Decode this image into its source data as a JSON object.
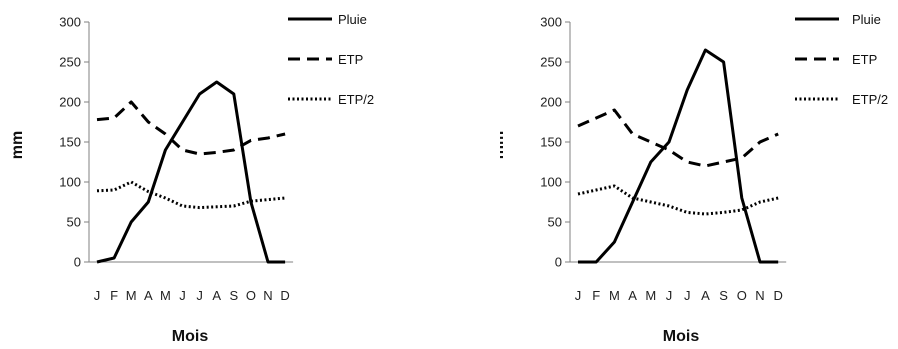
{
  "colors": {
    "line": "#000000",
    "axis": "#808080"
  },
  "chart_data": [
    {
      "type": "line",
      "categories": [
        "J",
        "F",
        "M",
        "A",
        "M",
        "J",
        "J",
        "A",
        "S",
        "O",
        "N",
        "D"
      ],
      "ylabel": "mm",
      "xlabel": "Mois",
      "ylim": [
        0,
        300
      ],
      "yticks": [
        0,
        50,
        100,
        150,
        200,
        250,
        300
      ],
      "grid": false,
      "legend_position": "top-right",
      "series": [
        {
          "name": "Pluie",
          "style": "solid",
          "values": [
            0,
            5,
            50,
            75,
            140,
            175,
            210,
            225,
            210,
            75,
            0,
            0
          ]
        },
        {
          "name": "ETP",
          "style": "dashed",
          "values": [
            178,
            180,
            200,
            175,
            160,
            140,
            135,
            137,
            140,
            152,
            155,
            160
          ]
        },
        {
          "name": "ETP/2",
          "style": "dotted",
          "values": [
            89,
            90,
            100,
            88,
            80,
            70,
            68,
            69,
            70,
            76,
            78,
            80
          ]
        }
      ]
    },
    {
      "type": "line",
      "categories": [
        "J",
        "F",
        "M",
        "A",
        "M",
        "J",
        "J",
        "A",
        "S",
        "O",
        "N",
        "D"
      ],
      "ylabel": "mm",
      "xlabel": "Mois",
      "ylim": [
        0,
        300
      ],
      "yticks": [
        0,
        50,
        100,
        150,
        200,
        250,
        300
      ],
      "grid": false,
      "legend_position": "top-right",
      "series": [
        {
          "name": "Pluie",
          "style": "solid",
          "values": [
            0,
            0,
            25,
            75,
            125,
            150,
            215,
            265,
            250,
            80,
            0,
            0
          ]
        },
        {
          "name": "ETP",
          "style": "dashed",
          "values": [
            170,
            180,
            190,
            160,
            150,
            140,
            125,
            120,
            125,
            130,
            150,
            160
          ]
        },
        {
          "name": "ETP/2",
          "style": "dotted",
          "values": [
            85,
            90,
            95,
            80,
            75,
            70,
            62,
            60,
            62,
            65,
            75,
            80
          ]
        }
      ]
    }
  ]
}
